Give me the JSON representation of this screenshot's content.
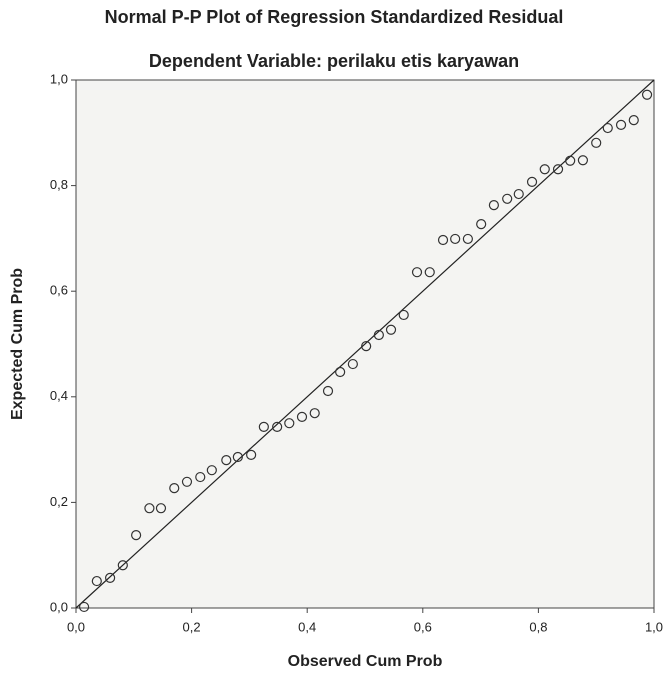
{
  "chart_data": {
    "type": "scatter",
    "title": "Normal P-P Plot of Regression Standardized Residual",
    "subtitle": "Dependent Variable: perilaku etis karyawan",
    "x_label": "Observed Cum Prob",
    "y_label": "Expected Cum Prob",
    "color": "#333333",
    "x": [
      0.014,
      0.036,
      0.059,
      0.081,
      0.104,
      0.127,
      0.147,
      0.17,
      0.192,
      0.215,
      0.235,
      0.26,
      0.28,
      0.303,
      0.325,
      0.348,
      0.369,
      0.391,
      0.413,
      0.436,
      0.457,
      0.479,
      0.502,
      0.524,
      0.545,
      0.567,
      0.59,
      0.612,
      0.635,
      0.656,
      0.678,
      0.701,
      0.723,
      0.746,
      0.766,
      0.789,
      0.811,
      0.834,
      0.855,
      0.877,
      0.9,
      0.92,
      0.943,
      0.965,
      0.988
    ],
    "values": [
      0.002,
      0.051,
      0.057,
      0.081,
      0.138,
      0.189,
      0.189,
      0.227,
      0.239,
      0.248,
      0.261,
      0.28,
      0.286,
      0.29,
      0.343,
      0.343,
      0.35,
      0.362,
      0.369,
      0.411,
      0.447,
      0.462,
      0.496,
      0.517,
      0.527,
      0.555,
      0.636,
      0.636,
      0.697,
      0.699,
      0.699,
      0.727,
      0.763,
      0.775,
      0.784,
      0.807,
      0.831,
      0.831,
      0.847,
      0.848,
      0.881,
      0.909,
      0.915,
      0.924,
      0.972
    ],
    "xlim": [
      0,
      1
    ],
    "ylim": [
      0,
      1
    ],
    "xticks": [
      {
        "value": 0,
        "label": "0,0"
      },
      {
        "value": 0.2,
        "label": "0,2"
      },
      {
        "value": 0.4,
        "label": "0,4"
      },
      {
        "value": 0.6,
        "label": "0,6"
      },
      {
        "value": 0.8,
        "label": "0,8"
      },
      {
        "value": 1,
        "label": "1,0"
      }
    ],
    "yticks": [
      {
        "value": 0,
        "label": "0,0"
      },
      {
        "value": 0.2,
        "label": "0,2"
      },
      {
        "value": 0.4,
        "label": "0,4"
      },
      {
        "value": 0.6,
        "label": "0,6"
      },
      {
        "value": 0.8,
        "label": "0,8"
      },
      {
        "value": 1,
        "label": "1,0"
      }
    ]
  }
}
